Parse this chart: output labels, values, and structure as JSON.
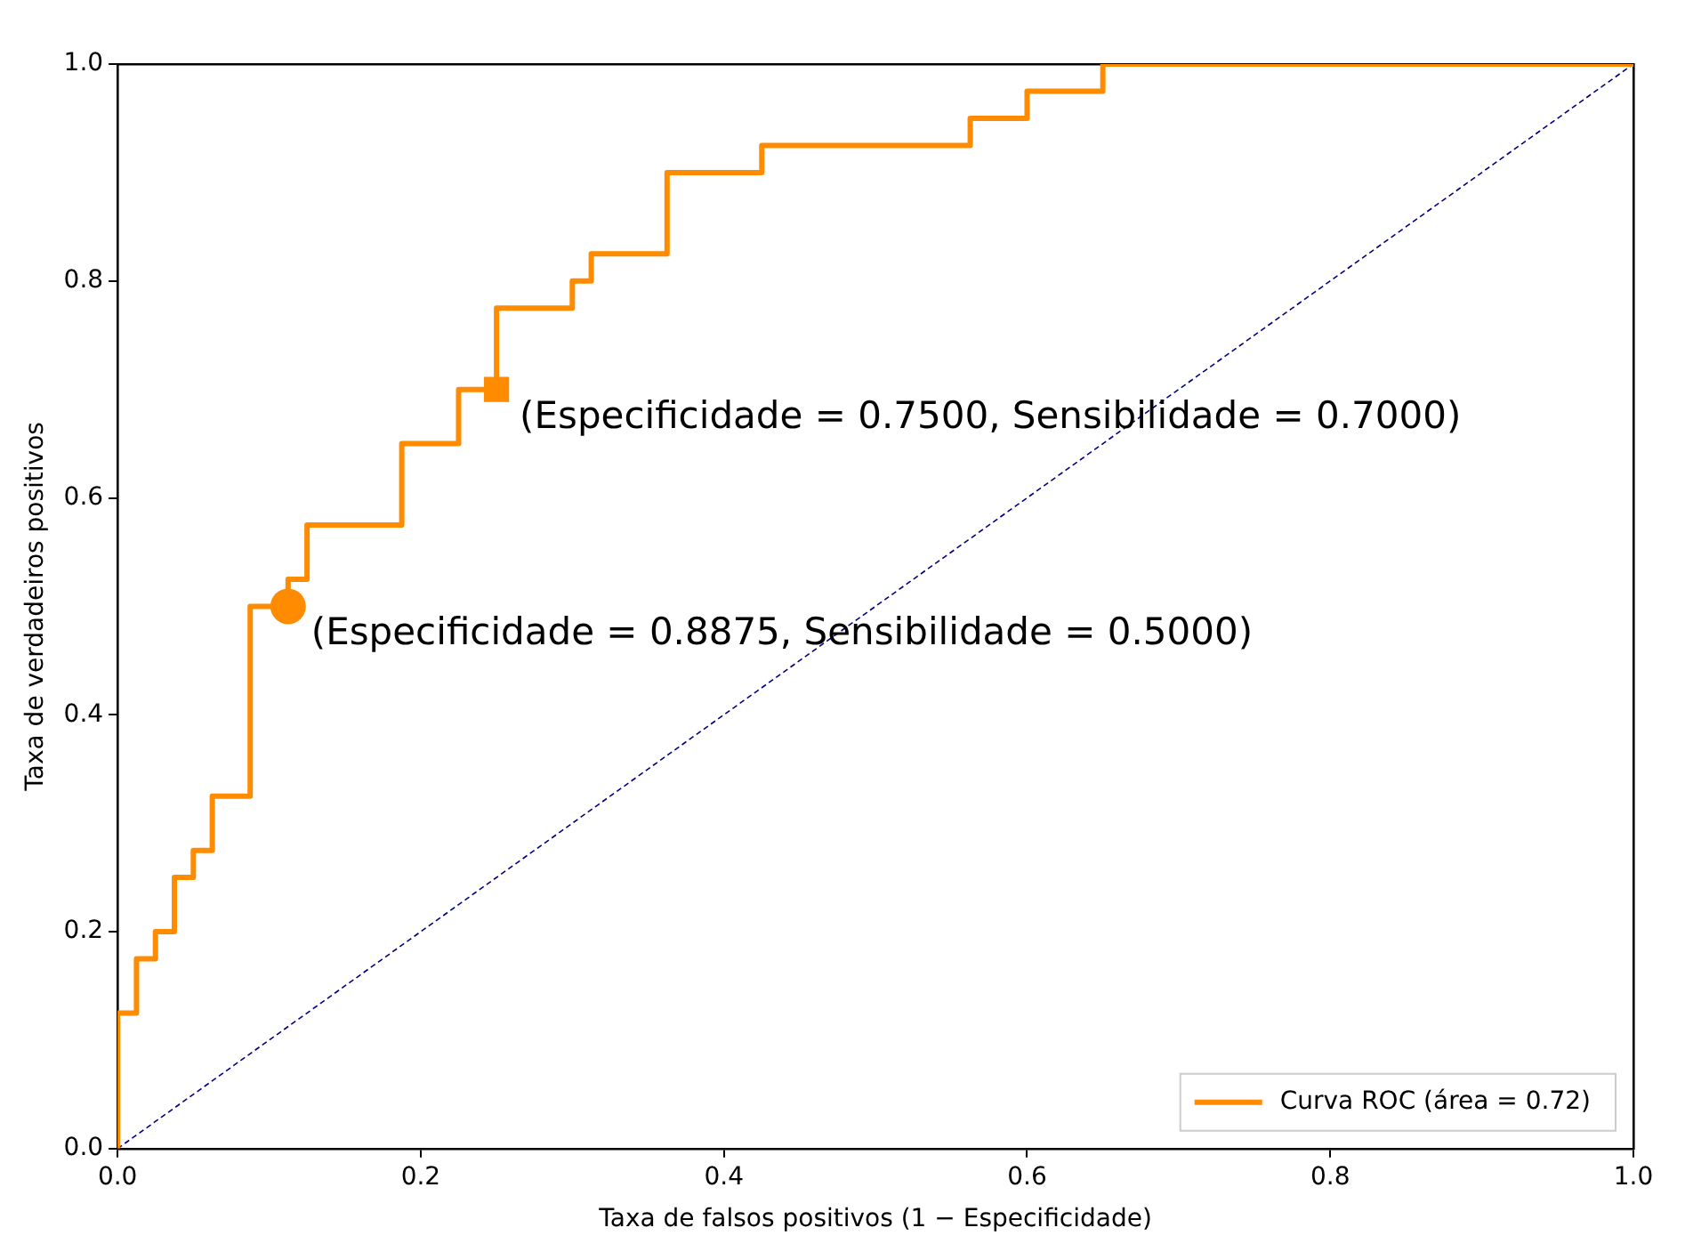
{
  "chart_data": {
    "type": "line",
    "xlabel": "Taxa de falsos positivos (1 − Especificidade)",
    "ylabel": "Taxa de verdadeiros positivos",
    "xlim": [
      0,
      1
    ],
    "ylim": [
      0,
      1
    ],
    "xticks": [
      {
        "value": 0,
        "label": "0.0"
      },
      {
        "value": 0.2,
        "label": "0.2"
      },
      {
        "value": 0.4,
        "label": "0.4"
      },
      {
        "value": 0.6,
        "label": "0.6"
      },
      {
        "value": 0.8,
        "label": "0.8"
      },
      {
        "value": 1,
        "label": "1.0"
      }
    ],
    "yticks": [
      {
        "value": 0,
        "label": "0.0"
      },
      {
        "value": 0.2,
        "label": "0.2"
      },
      {
        "value": 0.4,
        "label": "0.4"
      },
      {
        "value": 0.6,
        "label": "0.6"
      },
      {
        "value": 0.8,
        "label": "0.8"
      },
      {
        "value": 1,
        "label": "1.0"
      }
    ],
    "grid": false,
    "legend": "bottom right",
    "series": [
      {
        "name": "Curva ROC (área = 0.72)",
        "type": "step",
        "color": "#ff8c00",
        "marker": "none",
        "line_style": "solid",
        "x": [
          0,
          0,
          0.0125,
          0.025,
          0.0375,
          0.05,
          0.0625,
          0.0875,
          0.1125,
          0.125,
          0.1875,
          0.225,
          0.25,
          0.3,
          0.3125,
          0.3625,
          0.425,
          0.5625,
          0.6,
          0.65,
          1
        ],
        "values": [
          0,
          0.125,
          0.175,
          0.2,
          0.25,
          0.275,
          0.325,
          0.5,
          0.525,
          0.575,
          0.65,
          0.7,
          0.775,
          0.8,
          0.825,
          0.9,
          0.925,
          0.95,
          0.975,
          1,
          1
        ]
      },
      {
        "color": "#000080",
        "marker": "none",
        "line_style": "dashed",
        "x": [
          0,
          1
        ],
        "values": [
          0,
          1
        ]
      },
      {
        "type": "scatter",
        "color": "#ff8c00",
        "marker": "circle",
        "x": [
          0.1125
        ],
        "values": [
          0.5
        ]
      },
      {
        "type": "scatter",
        "color": "#ff8c00",
        "marker": "square",
        "x": [
          0.25
        ],
        "values": [
          0.7
        ]
      }
    ],
    "annotations": [
      {
        "text": "(Especificidade = 0.8875, Sensibilidade = 0.5000)",
        "x": 0.1125,
        "y": 0.5
      },
      {
        "text": "(Especificidade = 0.7500, Sensibilidade = 0.7000)",
        "x": 0.25,
        "y": 0.7
      }
    ]
  }
}
